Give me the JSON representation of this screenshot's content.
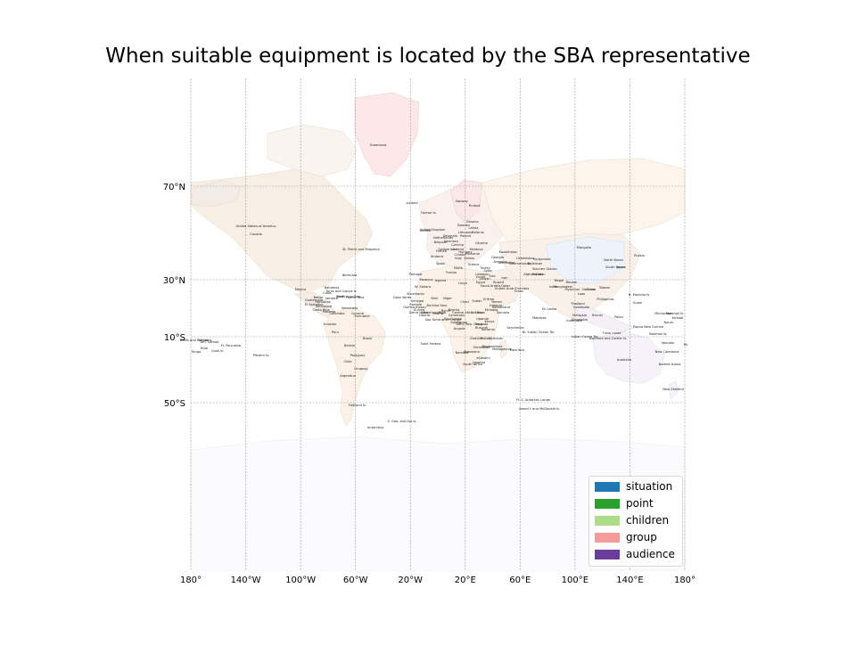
{
  "title": "When suitable equipment is located by the SBA representative",
  "map": {
    "projection": "mercator",
    "lon_range": [
      -180,
      180
    ],
    "lat_ticks": [
      "70°N",
      "30°N",
      "10°S",
      "50°S"
    ],
    "lon_ticks": [
      "180°",
      "140°W",
      "100°W",
      "60°W",
      "20°W",
      "20°E",
      "60°E",
      "100°E",
      "140°E",
      "180°"
    ],
    "grid": true,
    "colors": {
      "land_default": "#fbf1e6",
      "land_north_america": "#f8efe4",
      "land_greenland": "#fde7e9",
      "land_south_america": "#fbf1e6",
      "land_africa": "#fcf2e8",
      "land_antarctica": "#fbfbfd",
      "land_asia_east": "#edf3fa",
      "land_russia": "#fdf5ec",
      "land_australia": "#f5f3f9",
      "gridline": "#9a9a9a"
    },
    "places": [
      "Greenland",
      "Iceland",
      "Faeroe Is.",
      "Norway",
      "Finland",
      "Sweden",
      "Estonia",
      "Latvia",
      "Lithuania",
      "Belarus",
      "Poland",
      "Denmark",
      "Ireland",
      "United Kingdom",
      "Netherlands",
      "Belgium",
      "Germany",
      "Czechia",
      "Austria",
      "Switzerland",
      "France",
      "Andorra",
      "Spain",
      "Portugal",
      "Italy",
      "Malta",
      "Greece",
      "Turkey",
      "Ukraine",
      "Moldova",
      "Romania",
      "Hungary",
      "Serbia",
      "Croatia",
      "Georgia",
      "Armenia",
      "Azerbaijan",
      "Kazakhstan",
      "Uzbekistan",
      "Kyrgyzstan",
      "Tajikistan",
      "Turkmenistan",
      "Afghanistan",
      "Pakistan",
      "Siachen Glacier",
      "Iran",
      "Iraq",
      "Syria",
      "Lebanon",
      "Israel",
      "Jordan",
      "Kuwait",
      "Saudi Arabia",
      "Qatar",
      "United Arab Emirates",
      "Oman",
      "Yemen",
      "India",
      "Nepal",
      "Bhutan",
      "Bangladesh",
      "Myanmar",
      "Laos",
      "Thailand",
      "Vietnam",
      "Cambodia",
      "Malaysia",
      "Singapore",
      "Indonesia",
      "Brunei",
      "Philippines",
      "Taiwan",
      "China",
      "Mongolia",
      "North Korea",
      "South Korea",
      "Japan",
      "Russia",
      "Sri Lanka",
      "Maldives",
      "Br. Indian Ocean Ter.",
      "Indian Ocean Ter.",
      "Timor-Leste",
      "Papua New Guinea",
      "Palau",
      "Guam",
      "N. Mariana Is.",
      "Micronesia",
      "Marshall Is.",
      "Nauru",
      "Kiribati",
      "Solomon Is.",
      "Vanuatu",
      "New Caledonia",
      "Fiji",
      "Norfolk Island",
      "Australia",
      "New Zealand",
      "Ashmore and Cartier Is.",
      "Morocco",
      "W. Sahara",
      "Algeria",
      "Tunisia",
      "Libya",
      "Egypt",
      "Mauritania",
      "Mali",
      "Niger",
      "Chad",
      "Sudan",
      "S. Sudan",
      "Eritrea",
      "Ethiopia",
      "Djibouti",
      "Somaliland",
      "Somalia",
      "Senegal",
      "Gambia",
      "Guinea-Bissau",
      "Guinea",
      "Sierra Leone",
      "Liberia",
      "Côte d'Ivoire",
      "Burkina Faso",
      "Ghana",
      "Togo",
      "Benin",
      "Nigeria",
      "Cameroon",
      "Central African Rep.",
      "Eq. Guinea",
      "Gabon",
      "Congo",
      "Dem. Rep. Congo",
      "Uganda",
      "Kenya",
      "Rwanda",
      "Burundi",
      "Tanzania",
      "Angola",
      "Zambia",
      "Malawi",
      "Mozambique",
      "Zimbabwe",
      "Botswana",
      "Namibia",
      "South Africa",
      "Lesotho",
      "eSwatini",
      "Madagascar",
      "Comoros",
      "Mauritius",
      "Seychelles",
      "Cabo Verde",
      "Sao Tome and Principe",
      "Saint Helena",
      "United States of America",
      "Canada",
      "St. Pierre and Miquelon",
      "Bermuda",
      "Mexico",
      "Bahamas",
      "Cuba",
      "Turks and Caicos Is.",
      "Haiti",
      "Dominican Rep.",
      "Jamaica",
      "Puerto Rico",
      "Guatemala",
      "Belize",
      "Honduras",
      "El Salvador",
      "Nicaragua",
      "Costa Rica",
      "Panama",
      "Colombia",
      "Venezuela",
      "Guyana",
      "Suriname",
      "Ecuador",
      "Peru",
      "Brazil",
      "Bolivia",
      "Paraguay",
      "Chile",
      "Argentina",
      "Uruguay",
      "Falkland Is.",
      "S. Geo. and the Is.",
      "Antarctica",
      "Fr. S. Antarctic Lands",
      "Heard I. and McDonald Is.",
      "Fr. Polynesia",
      "Cook Is.",
      "Niue",
      "Tonga",
      "Pitcairn Is.",
      "Wallis and Futuna Is.",
      "Samoa",
      "Am. Samoa"
    ]
  },
  "legend": {
    "items": [
      {
        "label": "situation",
        "color": "#1f77b4"
      },
      {
        "label": "point",
        "color": "#2ca02c"
      },
      {
        "label": "children",
        "color": "#aedd8a"
      },
      {
        "label": "group",
        "color": "#f79a9a"
      },
      {
        "label": "audience",
        "color": "#6a3d9a"
      }
    ]
  }
}
